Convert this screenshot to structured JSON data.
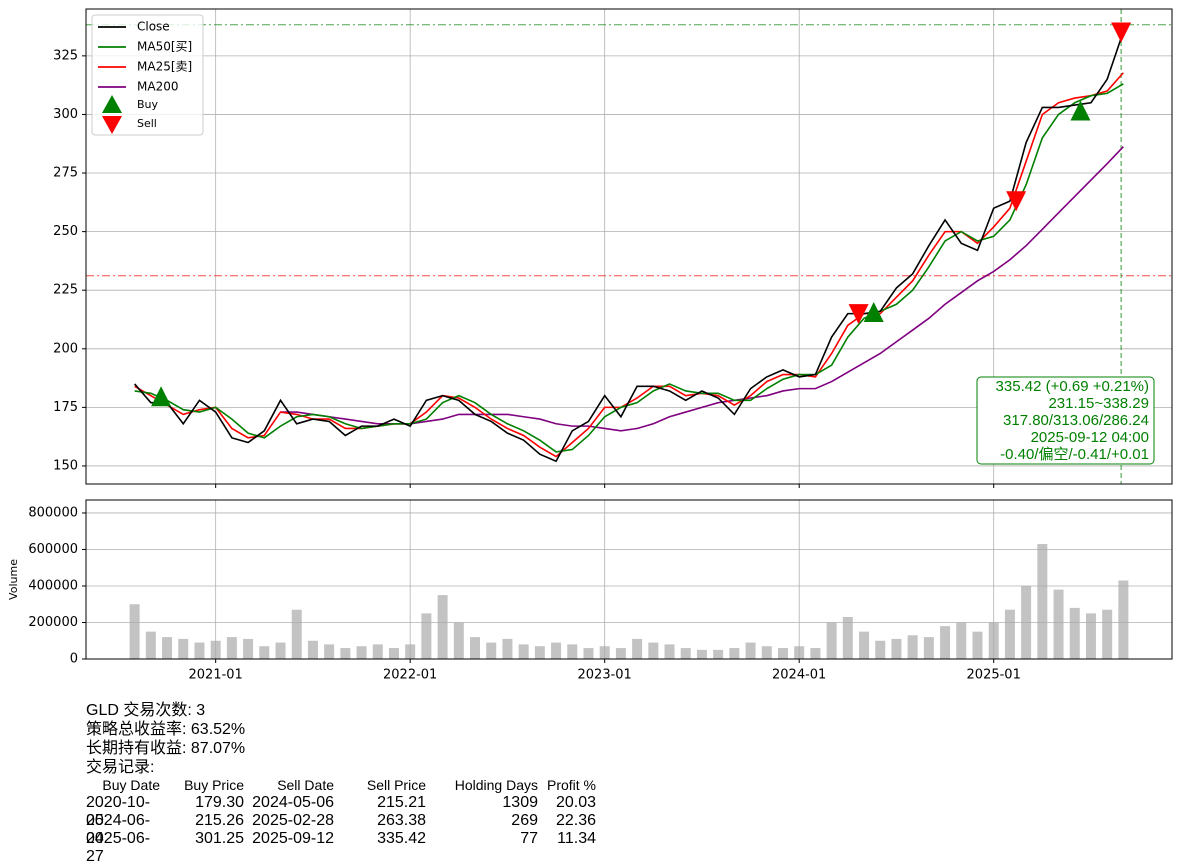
{
  "chart_data": [
    {
      "type": "line",
      "x": [
        "2020-08",
        "2020-09",
        "2020-10",
        "2020-11",
        "2020-12",
        "2021-01",
        "2021-02",
        "2021-03",
        "2021-04",
        "2021-05",
        "2021-06",
        "2021-07",
        "2021-08",
        "2021-09",
        "2021-10",
        "2021-11",
        "2021-12",
        "2022-01",
        "2022-02",
        "2022-03",
        "2022-04",
        "2022-05",
        "2022-06",
        "2022-07",
        "2022-08",
        "2022-09",
        "2022-10",
        "2022-11",
        "2022-12",
        "2023-01",
        "2023-02",
        "2023-03",
        "2023-04",
        "2023-05",
        "2023-06",
        "2023-07",
        "2023-08",
        "2023-09",
        "2023-10",
        "2023-11",
        "2023-12",
        "2024-01",
        "2024-02",
        "2024-03",
        "2024-04",
        "2024-05",
        "2024-06",
        "2024-07",
        "2024-08",
        "2024-09",
        "2024-10",
        "2024-11",
        "2024-12",
        "2025-01",
        "2025-02",
        "2025-03",
        "2025-04",
        "2025-05",
        "2025-06",
        "2025-07",
        "2025-08",
        "2025-09"
      ],
      "series": [
        {
          "name": "Close",
          "color": "#000000",
          "values": [
            185,
            177,
            177,
            168,
            178,
            173,
            162,
            160,
            165,
            178,
            168,
            170,
            169,
            163,
            167,
            167,
            170,
            167,
            178,
            180,
            178,
            172,
            169,
            164,
            161,
            155,
            152,
            165,
            169,
            180,
            171,
            184,
            184,
            182,
            178,
            182,
            179,
            172,
            183,
            188,
            191,
            188,
            189,
            205,
            215,
            215,
            216,
            226,
            232,
            244,
            255,
            245,
            242,
            260,
            263,
            288,
            303,
            303,
            304,
            305,
            315,
            335.42
          ]
        },
        {
          "name": "MA50[买]",
          "color": "#008000",
          "values": [
            182,
            181,
            178,
            174,
            173,
            175,
            170,
            164,
            162,
            167,
            171,
            172,
            171,
            168,
            166,
            167,
            168,
            168,
            170,
            177,
            180,
            177,
            172,
            168,
            165,
            161,
            156,
            157,
            163,
            171,
            175,
            177,
            182,
            185,
            182,
            181,
            181,
            178,
            178,
            183,
            187,
            189,
            189,
            193,
            205,
            213,
            216,
            219,
            225,
            235,
            246,
            250,
            246,
            248,
            255,
            270,
            290,
            300,
            305,
            308,
            309,
            313.06
          ]
        },
        {
          "name": "MA25[卖]",
          "color": "#ff0000",
          "values": [
            184,
            180,
            176,
            172,
            174,
            175,
            166,
            162,
            163,
            173,
            172,
            170,
            170,
            166,
            166,
            167,
            168,
            168,
            173,
            180,
            179,
            175,
            170,
            166,
            163,
            158,
            154,
            160,
            166,
            175,
            175,
            179,
            184,
            184,
            180,
            181,
            180,
            176,
            180,
            186,
            189,
            189,
            188,
            198,
            210,
            215,
            215,
            222,
            229,
            240,
            250,
            250,
            245,
            252,
            260,
            280,
            300,
            305,
            307,
            308,
            310,
            317.8
          ]
        },
        {
          "name": "MA200",
          "color": "#800080",
          "values": [
            null,
            null,
            null,
            null,
            null,
            null,
            null,
            null,
            null,
            173,
            173,
            172,
            171,
            170,
            169,
            168,
            168,
            168,
            169,
            170,
            172,
            172,
            172,
            172,
            171,
            170,
            168,
            167,
            167,
            166,
            165,
            166,
            168,
            171,
            173,
            175,
            177,
            178,
            179,
            180,
            182,
            183,
            183,
            186,
            190,
            194,
            198,
            203,
            208,
            213,
            219,
            224,
            229,
            233,
            238,
            244,
            251,
            258,
            265,
            272,
            279,
            286.24
          ]
        }
      ],
      "markers": [
        {
          "name": "Buy",
          "color": "#008000"
        },
        {
          "name": "Sell",
          "color": "#ff0000"
        }
      ],
      "hlines": [
        {
          "value": 338.29,
          "color": "#008000"
        },
        {
          "value": 231.15,
          "color": "#ff0000"
        }
      ],
      "vline": {
        "x": "2025-09-12",
        "color": "#008000"
      },
      "info_box": [
        "335.42 (+0.69 +0.21%)",
        "231.15~338.29",
        "317.80/313.06/286.24",
        "2025-09-12 04:00",
        "-0.40/偏空/-0.41/+0.01"
      ],
      "xlim": [
        "2020-05",
        "2025-12"
      ],
      "ylim": [
        142.3,
        345
      ],
      "yticks": [
        150,
        175,
        200,
        225,
        250,
        275,
        300,
        325
      ],
      "grid": true,
      "legend": "upper left"
    },
    {
      "type": "bar",
      "y_label": "Volume",
      "x": [
        "2020-08",
        "2020-09",
        "2020-10",
        "2020-11",
        "2020-12",
        "2021-01",
        "2021-02",
        "2021-03",
        "2021-04",
        "2021-05",
        "2021-06",
        "2021-07",
        "2021-08",
        "2021-09",
        "2021-10",
        "2021-11",
        "2021-12",
        "2022-01",
        "2022-02",
        "2022-03",
        "2022-04",
        "2022-05",
        "2022-06",
        "2022-07",
        "2022-08",
        "2022-09",
        "2022-10",
        "2022-11",
        "2022-12",
        "2023-01",
        "2023-02",
        "2023-03",
        "2023-04",
        "2023-05",
        "2023-06",
        "2023-07",
        "2023-08",
        "2023-09",
        "2023-10",
        "2023-11",
        "2023-12",
        "2024-01",
        "2024-02",
        "2024-03",
        "2024-04",
        "2024-05",
        "2024-06",
        "2024-07",
        "2024-08",
        "2024-09",
        "2024-10",
        "2024-11",
        "2024-12",
        "2025-01",
        "2025-02",
        "2025-03",
        "2025-04",
        "2025-05",
        "2025-06",
        "2025-07",
        "2025-08",
        "2025-09"
      ],
      "values": [
        300000,
        150000,
        120000,
        110000,
        90000,
        100000,
        120000,
        110000,
        70000,
        90000,
        270000,
        100000,
        80000,
        60000,
        70000,
        80000,
        60000,
        80000,
        250000,
        350000,
        200000,
        120000,
        90000,
        110000,
        80000,
        70000,
        90000,
        80000,
        60000,
        70000,
        60000,
        110000,
        90000,
        80000,
        60000,
        50000,
        50000,
        60000,
        90000,
        70000,
        60000,
        70000,
        60000,
        200000,
        230000,
        150000,
        100000,
        110000,
        130000,
        120000,
        180000,
        200000,
        150000,
        200000,
        270000,
        400000,
        630000,
        380000,
        280000,
        250000,
        270000,
        430000
      ],
      "color": "#a9a9a9",
      "xlim": [
        "2020-05",
        "2025-12"
      ],
      "xticks": [
        "2021-01",
        "2022-01",
        "2023-01",
        "2024-01",
        "2025-01"
      ],
      "ylim": [
        0,
        871000
      ],
      "yticks": [
        0,
        200000,
        400000,
        600000,
        800000
      ],
      "grid": true
    }
  ],
  "summary": [
    "GLD 交易次数: 3",
    "策略总收益率: 63.52%",
    "长期持有收益: 87.07%",
    "交易记录:"
  ],
  "trades": {
    "columns": [
      "Buy Date",
      "Buy Price",
      "Sell Date",
      "Sell Price",
      "Holding Days",
      "Profit %"
    ],
    "rows": [
      [
        "2020-10-05",
        "179.30",
        "2024-05-06",
        "215.21",
        "1309",
        "20.03"
      ],
      [
        "2024-06-04",
        "215.26",
        "2025-02-28",
        "263.38",
        "269",
        "22.36"
      ],
      [
        "2025-06-27",
        "301.25",
        "2025-09-12",
        "335.42",
        "77",
        "11.34"
      ]
    ]
  }
}
